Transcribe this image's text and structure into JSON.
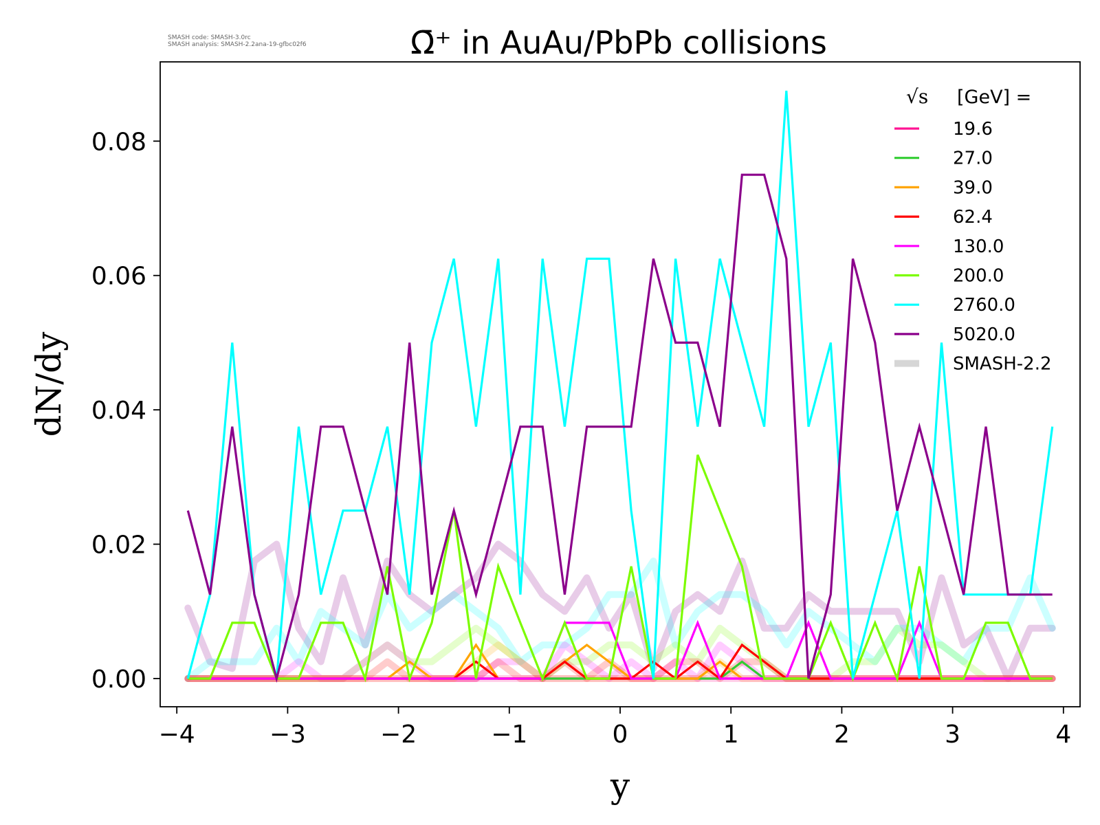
{
  "smash_info": {
    "code": "SMASH code:      SMASH-3.0rc",
    "analysis": "SMASH analysis: SMASH-2.2ana-19-gfbc02f6"
  },
  "chart_data": {
    "type": "line",
    "title": "Ω̄⁺ in AuAu/PbPb collisions",
    "xlabel": "y",
    "ylabel": "dN/dy",
    "xlim": [
      -4.15,
      4.15
    ],
    "ylim": [
      -0.0042,
      0.0918
    ],
    "xticks": [
      -4,
      -3,
      -2,
      -1,
      0,
      1,
      2,
      3,
      4
    ],
    "xtick_labels": [
      "−4",
      "−3",
      "−2",
      "−1",
      "0",
      "1",
      "2",
      "3",
      "4"
    ],
    "yticks": [
      0.0,
      0.02,
      0.04,
      0.06,
      0.08
    ],
    "ytick_labels": [
      "0.00",
      "0.02",
      "0.04",
      "0.06",
      "0.08"
    ],
    "grid": false,
    "legend": {
      "placement": "top-right",
      "title_sqrt": "√s",
      "title_rest": "[GeV] =",
      "reference_label": "SMASH-2.2"
    },
    "x": [
      -3.9,
      -3.7,
      -3.5,
      -3.3,
      -3.1,
      -2.9,
      -2.7,
      -2.5,
      -2.3,
      -2.1,
      -1.9,
      -1.7,
      -1.5,
      -1.3,
      -1.1,
      -0.9,
      -0.7,
      -0.5,
      -0.3,
      -0.1,
      0.1,
      0.3,
      0.5,
      0.7,
      0.9,
      1.1,
      1.3,
      1.5,
      1.7,
      1.9,
      2.1,
      2.3,
      2.5,
      2.7,
      2.9,
      3.1,
      3.3,
      3.5,
      3.7,
      3.9
    ],
    "series": [
      {
        "name": "19.6",
        "color": "#ff1493",
        "values": [
          0,
          0,
          0,
          0,
          0,
          0,
          0,
          0,
          0,
          0,
          0,
          0,
          0,
          0,
          0,
          0,
          0,
          0,
          0,
          0,
          0,
          0,
          0,
          0,
          0,
          0,
          0,
          0,
          0,
          0,
          0,
          0,
          0,
          0,
          0,
          0,
          0,
          0,
          0,
          0
        ]
      },
      {
        "name": "27.0",
        "color": "#32cd32",
        "values": [
          0,
          0,
          0,
          0,
          0,
          0,
          0,
          0,
          0,
          0,
          0,
          0,
          0,
          0,
          0,
          0,
          0,
          0,
          0,
          0,
          0,
          0,
          0,
          0,
          0,
          0.0025,
          0,
          0,
          0,
          0,
          0,
          0,
          0,
          0,
          0,
          0,
          0,
          0,
          0,
          0
        ]
      },
      {
        "name": "39.0",
        "color": "#ffa500",
        "values": [
          0,
          0,
          0,
          0,
          0,
          0,
          0,
          0,
          0,
          0,
          0.0025,
          0,
          0,
          0.005,
          0,
          0,
          0,
          0.0025,
          0.005,
          0.0025,
          0,
          0,
          0,
          0,
          0.0025,
          0,
          0,
          0,
          0,
          0,
          0,
          0,
          0,
          0,
          0,
          0,
          0,
          0,
          0,
          0
        ]
      },
      {
        "name": "62.4",
        "color": "#ff0000",
        "values": [
          0,
          0,
          0,
          0,
          0,
          0,
          0,
          0,
          0,
          0,
          0,
          0,
          0,
          0.0025,
          0,
          0,
          0,
          0.0025,
          0,
          0,
          0,
          0.0025,
          0,
          0.0025,
          0,
          0.005,
          0.0025,
          0,
          0,
          0,
          0,
          0,
          0,
          0,
          0,
          0,
          0,
          0,
          0,
          0
        ]
      },
      {
        "name": "130.0",
        "color": "#ff00ff",
        "values": [
          0,
          0,
          0,
          0,
          0,
          0,
          0,
          0,
          0,
          0,
          0,
          0,
          0,
          0,
          0,
          0,
          0,
          0.0083,
          0.0083,
          0.0083,
          0,
          0,
          0,
          0.0083,
          0,
          0,
          0,
          0,
          0.0083,
          0,
          0,
          0,
          0,
          0.0083,
          0,
          0,
          0,
          0,
          0,
          0
        ]
      },
      {
        "name": "200.0",
        "color": "#7cfc00",
        "values": [
          0,
          0,
          0.0083,
          0.0083,
          0,
          0,
          0.0083,
          0.0083,
          0,
          0.0167,
          0,
          0.0083,
          0.025,
          0,
          0.0167,
          0.0083,
          0,
          0.0083,
          0,
          0,
          0.0167,
          0,
          0,
          0.0333,
          0.025,
          0.0167,
          0,
          0,
          0,
          0.0083,
          0,
          0.0083,
          0,
          0.0167,
          0,
          0,
          0.0083,
          0.0083,
          0,
          0
        ]
      },
      {
        "name": "2760.0",
        "color": "#00ffff",
        "values": [
          0,
          0.0125,
          0.05,
          0.0125,
          0,
          0.0375,
          0.0125,
          0.025,
          0.025,
          0.0375,
          0.0125,
          0.05,
          0.0625,
          0.0375,
          0.0625,
          0.0125,
          0.0625,
          0.0375,
          0.0625,
          0.0625,
          0.025,
          0,
          0.0625,
          0.0375,
          0.0625,
          0.05,
          0.0375,
          0.0875,
          0.0375,
          0.05,
          0,
          0.0125,
          0.025,
          0,
          0.05,
          0.0125,
          0.0125,
          0.0125,
          0.0125,
          0.0375
        ]
      },
      {
        "name": "5020.0",
        "color": "#8b008b",
        "values": [
          0.025,
          0.0125,
          0.0375,
          0.0125,
          0,
          0.0125,
          0.0375,
          0.0375,
          0.025,
          0.0125,
          0.05,
          0.0125,
          0.025,
          0.0125,
          0.025,
          0.0375,
          0.0375,
          0.0125,
          0.0375,
          0.0375,
          0.0375,
          0.0625,
          0.05,
          0.05,
          0.0375,
          0.075,
          0.075,
          0.0625,
          0,
          0.0125,
          0.0625,
          0.05,
          0.025,
          0.0375,
          0.025,
          0.0125,
          0.0375,
          0.0125,
          0.0125,
          0.0125
        ]
      }
    ],
    "reference_series": [
      {
        "name": "5020.0",
        "color": "#8b008b",
        "values": [
          0.0105,
          0.0025,
          0.0015,
          0.0175,
          0.02,
          0.0075,
          0.0025,
          0.015,
          0.005,
          0.0175,
          0.0125,
          0.01,
          0.0125,
          0.015,
          0.02,
          0.0175,
          0.0125,
          0.01,
          0.015,
          0.0075,
          0.0125,
          0.0015,
          0.01,
          0.0125,
          0.01,
          0.0175,
          0.0075,
          0.0075,
          0.0125,
          0.01,
          0.01,
          0.01,
          0.01,
          0.0025,
          0.015,
          0.005,
          0.0075,
          0,
          0.0075,
          0.0075
        ]
      },
      {
        "name": "2760.0",
        "color": "#00ffff",
        "values": [
          0,
          0.0025,
          0.0025,
          0.0025,
          0.0075,
          0.0025,
          0.01,
          0.0075,
          0.005,
          0.0125,
          0.0075,
          0.01,
          0.0125,
          0.01,
          0.0075,
          0.0025,
          0.005,
          0.005,
          0.0075,
          0.0125,
          0.0125,
          0.0175,
          0.005,
          0.01,
          0.0125,
          0.0125,
          0.01,
          0.005,
          0.01,
          0.0075,
          0.005,
          0.0025,
          0.0075,
          0.0075,
          0.005,
          0.0025,
          0.0075,
          0.0075,
          0.015,
          0.0075
        ]
      },
      {
        "name": "200.0",
        "color": "#7cfc00",
        "values": [
          0,
          0,
          0,
          0,
          0,
          0,
          0,
          0,
          0.0025,
          0.005,
          0.0025,
          0.0025,
          0.005,
          0.0075,
          0.005,
          0.0025,
          0,
          0.0025,
          0.0025,
          0.005,
          0.005,
          0.0025,
          0.005,
          0.0025,
          0.0075,
          0.005,
          0.0025,
          0,
          0,
          0,
          0.0025,
          0.0025,
          0.0075,
          0.005,
          0.005,
          0.0025,
          0,
          0,
          0,
          0
        ]
      },
      {
        "name": "130.0",
        "color": "#ff00ff",
        "values": [
          0,
          0,
          0,
          0,
          0,
          0.0025,
          0,
          0,
          0.0025,
          0.005,
          0.0025,
          0,
          0,
          0,
          0.0025,
          0.0025,
          0,
          0.005,
          0.0025,
          0,
          0.0025,
          0,
          0.0025,
          0,
          0.005,
          0.0025,
          0,
          0,
          0,
          0,
          0,
          0,
          0,
          0,
          0,
          0,
          0,
          0,
          0,
          0
        ]
      },
      {
        "name": "62.4",
        "color": "#ff0000",
        "values": [
          0,
          0,
          0,
          0,
          0,
          0,
          0,
          0,
          0,
          0.0025,
          0,
          0,
          0,
          0,
          0.0025,
          0,
          0,
          0.0025,
          0,
          0.0025,
          0,
          0,
          0.0025,
          0.0025,
          0,
          0.0025,
          0.0025,
          0,
          0,
          0,
          0,
          0,
          0,
          0,
          0,
          0,
          0,
          0,
          0,
          0
        ]
      },
      {
        "name": "39.0",
        "color": "#ffa500",
        "values": [
          0,
          0,
          0,
          0,
          0,
          0,
          0,
          0,
          0,
          0,
          0,
          0,
          0,
          0.0025,
          0.005,
          0.0025,
          0,
          0,
          0,
          0,
          0,
          0,
          0,
          0,
          0.0025,
          0,
          0,
          0,
          0,
          0,
          0,
          0,
          0,
          0,
          0,
          0,
          0,
          0,
          0,
          0
        ]
      },
      {
        "name": "19.6",
        "color": "#ff1493",
        "values": [
          0,
          0,
          0,
          0,
          0,
          0,
          0,
          0,
          0,
          0,
          0,
          0,
          0,
          0,
          0,
          0,
          0,
          0,
          0,
          0,
          0,
          0,
          0,
          0,
          0,
          0,
          0,
          0,
          0,
          0,
          0,
          0,
          0,
          0,
          0,
          0,
          0,
          0,
          0,
          0
        ]
      }
    ]
  }
}
